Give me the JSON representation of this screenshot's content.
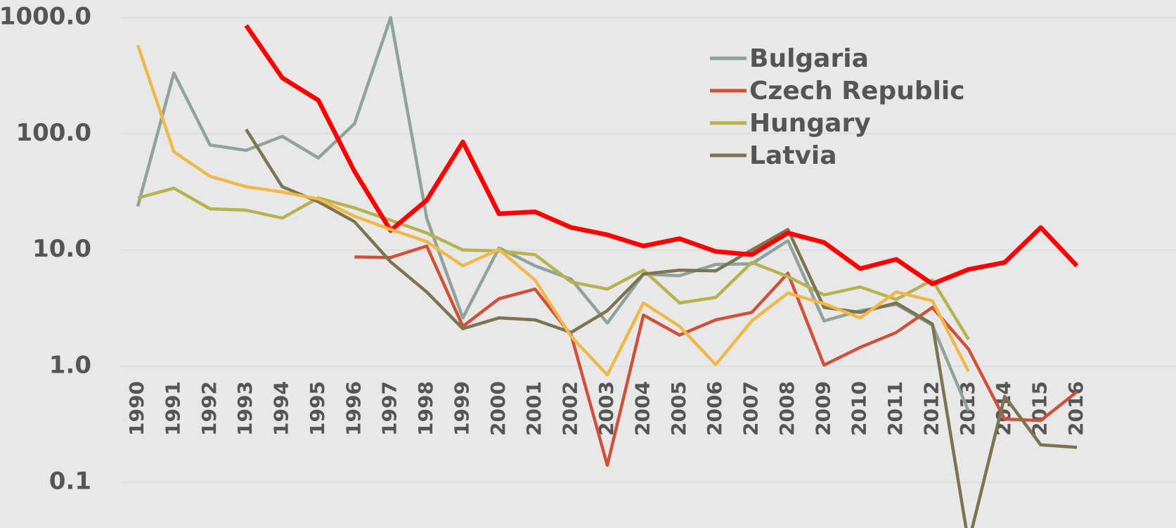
{
  "chart_data": {
    "type": "line",
    "log_scale": true,
    "grid": true,
    "legend": "upper right",
    "ylim": [
      0.1,
      1000
    ],
    "yticks": [
      {
        "value": 0.1,
        "label": "0.1"
      },
      {
        "value": 1,
        "label": "1.0"
      },
      {
        "value": 10,
        "label": "10.0"
      },
      {
        "value": 100,
        "label": "100.0"
      },
      {
        "value": 1000,
        "label": "1000.0"
      }
    ],
    "categories": [
      "1990",
      "1991",
      "1992",
      "1993",
      "1994",
      "1995",
      "1996",
      "1997",
      "1998",
      "1999",
      "2000",
      "2001",
      "2002",
      "2003",
      "2004",
      "2005",
      "2006",
      "2007",
      "2008",
      "2009",
      "2010",
      "2011",
      "2012",
      "2013",
      "2014",
      "2015",
      "2016"
    ],
    "series": [
      {
        "name": "Bulgaria",
        "color": "#8fa39a",
        "values": [
          23.7,
          333,
          80,
          72,
          95,
          62,
          122,
          1000,
          18.8,
          2.6,
          10.4,
          7.3,
          5.6,
          2.35,
          6.2,
          6.0,
          7.5,
          7.6,
          12,
          2.45,
          3.0,
          3.4,
          2.25,
          0.41,
          null,
          null,
          null
        ]
      },
      {
        "name": "Czech Republic",
        "color": "#d0503a",
        "values": [
          null,
          null,
          null,
          null,
          null,
          null,
          8.7,
          8.6,
          10.8,
          2.2,
          3.8,
          4.6,
          1.85,
          0.14,
          2.75,
          1.85,
          2.5,
          2.9,
          6.3,
          1.02,
          1.45,
          1.95,
          3.2,
          1.4,
          0.35,
          0.34,
          0.6
        ]
      },
      {
        "name": "Hungary",
        "color": "#b5b350",
        "values": [
          28,
          34,
          22.6,
          22,
          18.8,
          28,
          23,
          18,
          14,
          10,
          9.8,
          9.1,
          5.3,
          4.6,
          6.7,
          3.5,
          3.9,
          7.8,
          5.9,
          4.1,
          4.8,
          3.75,
          5.5,
          1.7,
          null,
          null,
          null
        ]
      },
      {
        "name": "Latvia",
        "color": "#7a7450",
        "values": [
          null,
          null,
          null,
          109,
          35,
          26,
          17.5,
          7.9,
          4.35,
          2.1,
          2.6,
          2.5,
          1.95,
          3.0,
          6.2,
          6.7,
          6.6,
          10,
          15,
          3.2,
          2.9,
          3.5,
          2.3,
          0.03,
          0.55,
          0.21,
          0.2
        ]
      },
      {
        "color": "#ff0000",
        "values": [
          null,
          null,
          null,
          856,
          303,
          194,
          47.5,
          14.7,
          26.8,
          85,
          20.5,
          21.3,
          15.6,
          13.5,
          10.8,
          12.5,
          9.7,
          9.1,
          14,
          11.6,
          6.9,
          8.3,
          5.1,
          6.8,
          7.8,
          15.6,
          7.3
        ]
      },
      {
        "color": "#f0b84a",
        "values": [
          579,
          70,
          43,
          35,
          31.5,
          27.5,
          19.5,
          15,
          11.8,
          7.3,
          10.1,
          5.5,
          1.8,
          0.84,
          3.5,
          2.2,
          1.03,
          2.45,
          4.25,
          3.45,
          2.6,
          4.35,
          3.65,
          0.9,
          null,
          null,
          null
        ]
      }
    ]
  }
}
